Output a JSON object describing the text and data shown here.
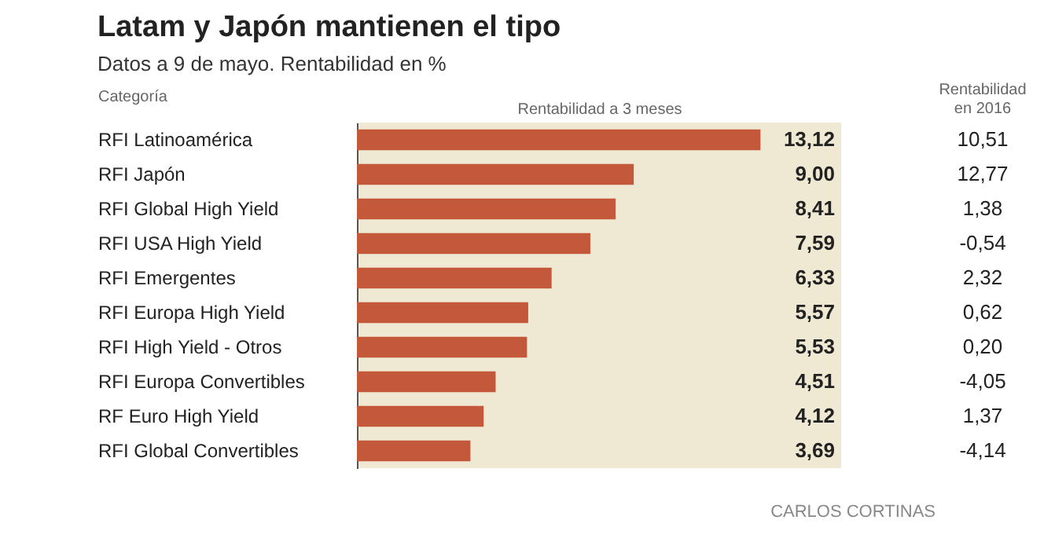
{
  "chart_data": {
    "type": "bar",
    "orientation": "horizontal",
    "title": "Latam y Japón mantienen el tipo",
    "subtitle": "Datos a 9 de mayo. Rentabilidad en %",
    "xlabel": "Rentabilidad a 3 meses",
    "ylabel": "Categoría",
    "categories": [
      "RFI Latinoamérica",
      "RFI Japón",
      "RFI Global High Yield",
      "RFI USA High Yield",
      "RFI Emergentes",
      "RFI Europa High Yield",
      "RFI High Yield - Otros",
      "RFI Europa Convertibles",
      "RF Euro High Yield",
      "RFI Global Convertibles"
    ],
    "values": [
      13.12,
      9.0,
      8.41,
      7.59,
      6.33,
      5.57,
      5.53,
      4.51,
      4.12,
      3.69
    ],
    "value_labels": [
      "13,12",
      "9,00",
      "8,41",
      "7,59",
      "6,33",
      "5,57",
      "5,53",
      "4,51",
      "4,12",
      "3,69"
    ],
    "color": "#c4583a",
    "grid": false,
    "annotations": [
      "Rentabilidad en 2016",
      "CARLOS CORTINAS",
      "10,51",
      "12,77",
      "1,38",
      "-0,54",
      "2,32",
      "0,62",
      "0,20",
      "-4,05",
      "1,37",
      "-4,14"
    ]
  }
}
